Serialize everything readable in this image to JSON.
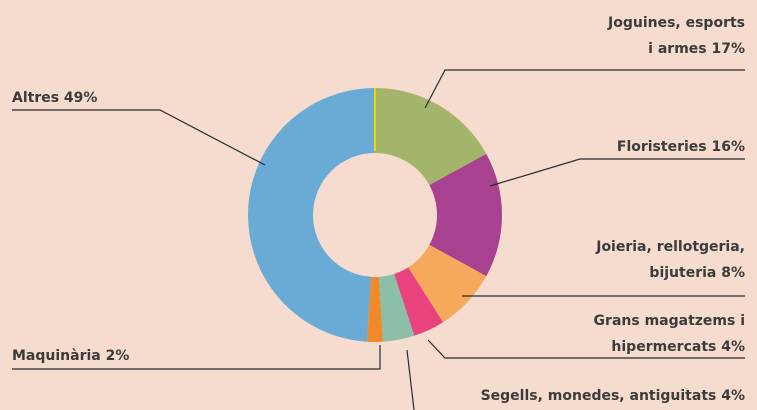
{
  "chart_data": {
    "type": "donut",
    "labels": [
      [
        "Joguines, esports",
        "i armes 17%"
      ],
      [
        "Floristeries 16%"
      ],
      [
        "Joieria, rellotgeria,",
        "bijuteria 8%"
      ],
      [
        "Grans magatzems i",
        "hipermercats 4%"
      ],
      [
        "Segells, monedes, antiguitats 4%"
      ],
      [
        "Maquinària 2%"
      ],
      [
        "Altres 49%"
      ]
    ],
    "values": [
      17,
      16,
      8,
      4,
      4,
      2,
      49
    ],
    "colors": [
      "#a3b56b",
      "#a8418f",
      "#f6a85c",
      "#e8437f",
      "#8cbfa8",
      "#f08a2a",
      "#6aabd5"
    ]
  }
}
